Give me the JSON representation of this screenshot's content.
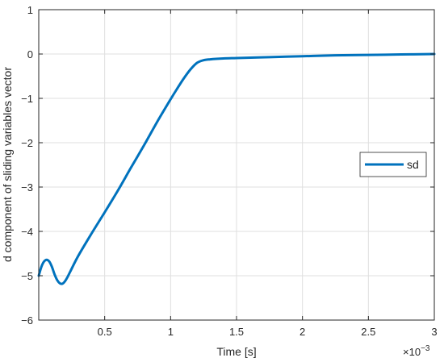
{
  "chart_data": {
    "type": "line",
    "title": "",
    "xlabel": "Time [s]",
    "ylabel": "d component of sliding variables vector",
    "x_exponent_base": "×10",
    "x_exponent_power": "−3",
    "xlim": [
      0,
      3
    ],
    "ylim": [
      -6,
      1
    ],
    "x_ticks": [
      0.5,
      1,
      1.5,
      2,
      2.5,
      3
    ],
    "x_tick_labels": [
      "0.5",
      "1",
      "1.5",
      "2",
      "2.5",
      "3"
    ],
    "y_ticks": [
      -6,
      -5,
      -4,
      -3,
      -2,
      -1,
      0,
      1
    ],
    "y_tick_labels": [
      "−6",
      "−5",
      "−4",
      "−3",
      "−2",
      "−1",
      "0",
      "1"
    ],
    "grid": true,
    "legend_position": "right",
    "series": [
      {
        "name": "sd",
        "color": "#0072BD",
        "x": [
          0,
          0.02,
          0.04,
          0.06,
          0.08,
          0.1,
          0.12,
          0.14,
          0.16,
          0.18,
          0.2,
          0.22,
          0.24,
          0.3,
          0.4,
          0.5,
          0.6,
          0.7,
          0.8,
          0.9,
          1.0,
          1.05,
          1.1,
          1.15,
          1.2,
          1.25,
          1.3,
          1.4,
          1.5,
          1.75,
          2.0,
          2.25,
          2.5,
          2.75,
          3.0
        ],
        "values": [
          -5.0,
          -4.8,
          -4.68,
          -4.64,
          -4.68,
          -4.8,
          -4.97,
          -5.1,
          -5.17,
          -5.18,
          -5.12,
          -5.02,
          -4.9,
          -4.55,
          -4.05,
          -3.57,
          -3.08,
          -2.56,
          -2.05,
          -1.52,
          -1.02,
          -0.78,
          -0.55,
          -0.35,
          -0.2,
          -0.14,
          -0.12,
          -0.1,
          -0.09,
          -0.07,
          -0.05,
          -0.03,
          -0.02,
          -0.01,
          0.0
        ]
      }
    ]
  }
}
